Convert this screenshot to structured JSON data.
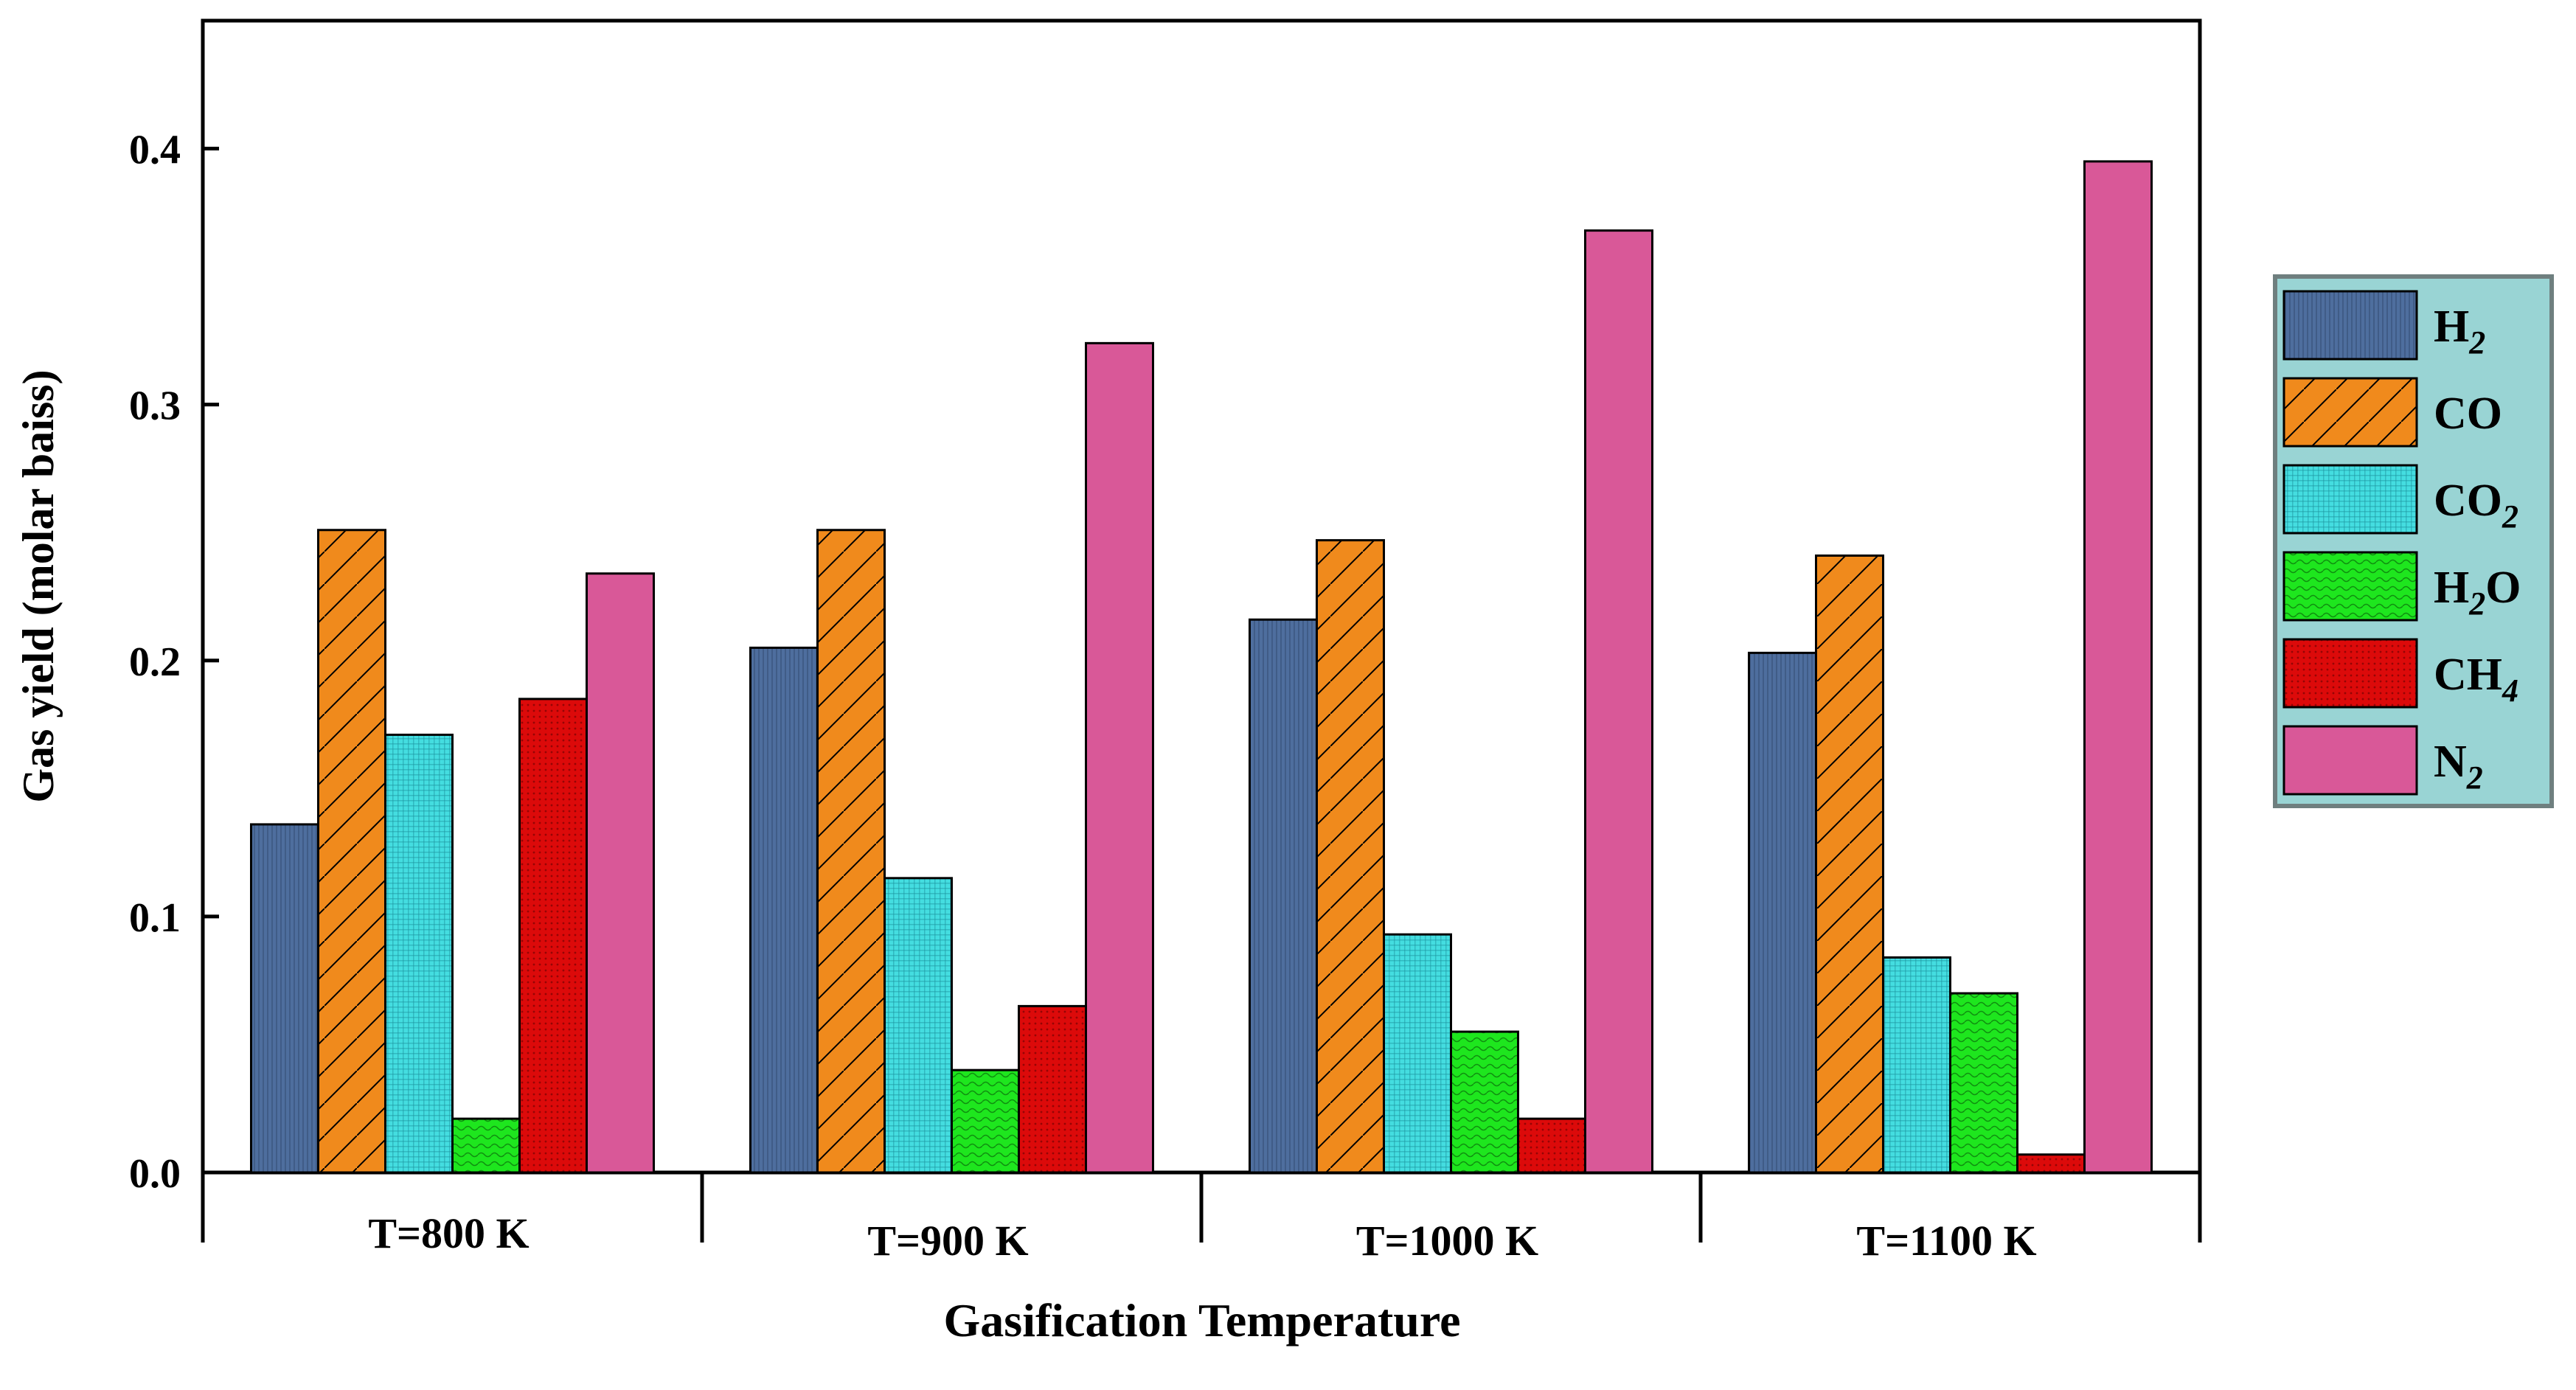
{
  "chart_data": {
    "type": "bar",
    "title": "",
    "xlabel": "Gasification Temperature",
    "ylabel": "Gas yield (molar baiss)",
    "categories": [
      "T=800 K",
      "T=900 K",
      "T=1000 K",
      "T=1100 K"
    ],
    "ylim": [
      0,
      0.45
    ],
    "yticks": [
      0.0,
      0.1,
      0.2,
      0.3,
      0.4
    ],
    "ytick_labels": [
      "0.0",
      "0.1",
      "0.2",
      "0.3",
      "0.4"
    ],
    "grid": false,
    "legend_position": "right",
    "series": [
      {
        "name": "H2",
        "label": "H",
        "subscript": "2",
        "color": "#4e6e9e",
        "pattern": "vertical-lines",
        "values": [
          0.136,
          0.205,
          0.216,
          0.203
        ]
      },
      {
        "name": "CO",
        "label": "CO",
        "subscript": "",
        "color": "#f08a1c",
        "pattern": "diagonal-hatch",
        "values": [
          0.251,
          0.251,
          0.247,
          0.241
        ]
      },
      {
        "name": "CO2",
        "label": "CO",
        "subscript": "2",
        "color": "#44dde0",
        "pattern": "fine-grid",
        "values": [
          0.171,
          0.115,
          0.093,
          0.084
        ]
      },
      {
        "name": "H2O",
        "label": "H",
        "subscript": "2",
        "suffix": "O",
        "color": "#1ee61e",
        "pattern": "waves",
        "values": [
          0.021,
          0.04,
          0.055,
          0.07
        ]
      },
      {
        "name": "CH4",
        "label": "CH",
        "subscript": "4",
        "color": "#dc0a0a",
        "pattern": "dots",
        "values": [
          0.185,
          0.065,
          0.021,
          0.007
        ]
      },
      {
        "name": "N2",
        "label": "N",
        "subscript": "2",
        "color": "#d95898",
        "pattern": "solid",
        "values": [
          0.234,
          0.324,
          0.368,
          0.395
        ]
      }
    ]
  }
}
